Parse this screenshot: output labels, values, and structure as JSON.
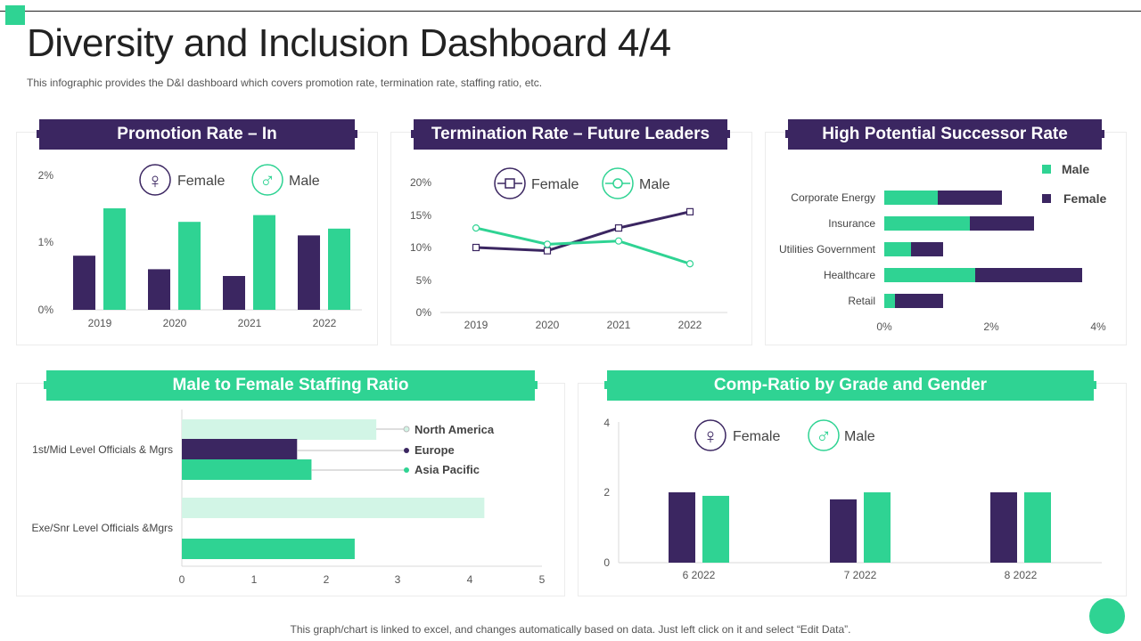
{
  "page": {
    "title": "Diversity and Inclusion Dashboard 4/4",
    "subtitle": "This infographic provides the D&I dashboard which covers promotion rate, termination rate, staffing ratio, etc.",
    "footer": "This graph/chart is linked to excel,  and changes automatically based on data. Just left click on it and select “Edit Data”."
  },
  "colors": {
    "purple": "#3b2661",
    "green": "#2fd393",
    "light_green": "#d2f5e6"
  },
  "legend": {
    "female": "Female",
    "male": "Male"
  },
  "chart_data": [
    {
      "id": "promotion",
      "type": "bar",
      "title": "Promotion Rate – In",
      "categories": [
        "2019",
        "2020",
        "2021",
        "2022"
      ],
      "series": [
        {
          "name": "Female",
          "values": [
            0.8,
            0.6,
            0.5,
            1.1
          ]
        },
        {
          "name": "Male",
          "values": [
            1.5,
            1.3,
            1.4,
            1.2
          ]
        }
      ],
      "ylim": [
        0,
        2
      ],
      "yticks": [
        "0%",
        "1%",
        "2%"
      ]
    },
    {
      "id": "termination",
      "type": "line",
      "title": "Termination Rate – Future Leaders",
      "categories": [
        "2019",
        "2020",
        "2021",
        "2022"
      ],
      "series": [
        {
          "name": "Female",
          "values": [
            10,
            9.5,
            13,
            15.5
          ]
        },
        {
          "name": "Male",
          "values": [
            13,
            10.5,
            11,
            7.5
          ]
        }
      ],
      "ylim": [
        0,
        20
      ],
      "yticks": [
        "0%",
        "5%",
        "10%",
        "15%",
        "20%"
      ]
    },
    {
      "id": "successor",
      "type": "bar",
      "orientation": "horizontal",
      "stacked": true,
      "title": "High Potential Successor Rate",
      "categories": [
        "Corporate Energy",
        "Insurance",
        "Utilities Government",
        "Healthcare",
        "Retail"
      ],
      "series": [
        {
          "name": "Male",
          "values": [
            1.0,
            1.6,
            0.5,
            1.7,
            0.2
          ]
        },
        {
          "name": "Female",
          "values": [
            1.2,
            1.2,
            0.6,
            2.0,
            0.9
          ]
        }
      ],
      "xlim": [
        0,
        4
      ],
      "xticks": [
        "0%",
        "2%",
        "4%"
      ]
    },
    {
      "id": "staffing",
      "type": "bar",
      "orientation": "horizontal",
      "title": "Male to Female Staffing Ratio",
      "categories": [
        "1st/Mid Level Officials & Mgrs",
        "Exe/Snr Level Officials &Mgrs"
      ],
      "series": [
        {
          "name": "North America",
          "values": [
            2.7,
            4.2
          ]
        },
        {
          "name": "Europe",
          "values": [
            1.6,
            null
          ]
        },
        {
          "name": "Asia Pacific",
          "values": [
            1.8,
            2.4
          ]
        }
      ],
      "xlim": [
        0,
        5
      ],
      "xticks": [
        "0",
        "1",
        "2",
        "3",
        "4",
        "5"
      ]
    },
    {
      "id": "comp",
      "type": "bar",
      "title": "Comp-Ratio by Grade and Gender",
      "categories": [
        "6 2022",
        "7 2022",
        "8 2022"
      ],
      "series": [
        {
          "name": "Female",
          "values": [
            2.0,
            1.8,
            2.0
          ]
        },
        {
          "name": "Male",
          "values": [
            1.9,
            2.0,
            2.0
          ]
        }
      ],
      "ylim": [
        0,
        4
      ],
      "yticks": [
        "0",
        "2",
        "4"
      ]
    }
  ]
}
